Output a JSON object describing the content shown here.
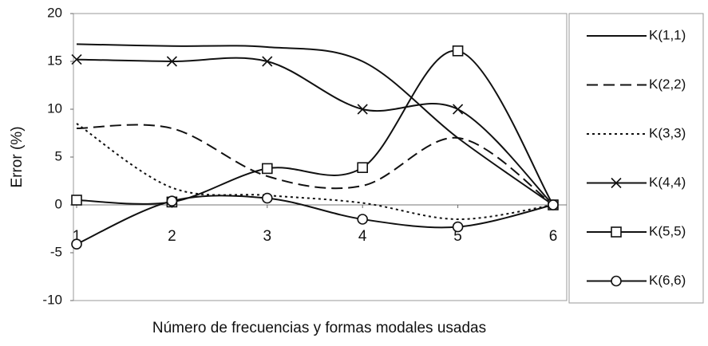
{
  "chart_data": {
    "type": "line",
    "xlabel": "Número de frecuencias y formas modales usadas",
    "ylabel": "Error (%)",
    "x": [
      1,
      2,
      3,
      4,
      5,
      6
    ],
    "xlim": [
      1,
      6
    ],
    "xticks": [
      1,
      2,
      3,
      4,
      5,
      6
    ],
    "ylim": [
      -10,
      20
    ],
    "yticks": [
      -10,
      -5,
      0,
      5,
      10,
      15,
      20
    ],
    "legend": "right",
    "series": [
      {
        "name": "K(1,1)",
        "color": "#111111",
        "style": "solid",
        "marker": "none",
        "values": [
          16.8,
          16.6,
          16.5,
          15,
          7,
          0
        ]
      },
      {
        "name": "K(2,2)",
        "color": "#111111",
        "style": "dashed",
        "marker": "none",
        "values": [
          8,
          8,
          3,
          2,
          7,
          0
        ]
      },
      {
        "name": "K(3,3)",
        "color": "#111111",
        "style": "dotted",
        "marker": "none",
        "values": [
          8.5,
          1.8,
          1,
          0.2,
          -1.5,
          0
        ]
      },
      {
        "name": "K(4,4)",
        "color": "#111111",
        "style": "solid",
        "marker": "x",
        "values": [
          15.2,
          15,
          15,
          10,
          10,
          0
        ]
      },
      {
        "name": "K(5,5)",
        "color": "#111111",
        "style": "solid",
        "marker": "square",
        "values": [
          0.5,
          0.3,
          3.8,
          3.9,
          16.1,
          0
        ]
      },
      {
        "name": "K(6,6)",
        "color": "#111111",
        "style": "solid",
        "marker": "circle",
        "values": [
          -4.1,
          0.4,
          0.7,
          -1.5,
          -2.3,
          0
        ]
      }
    ]
  }
}
